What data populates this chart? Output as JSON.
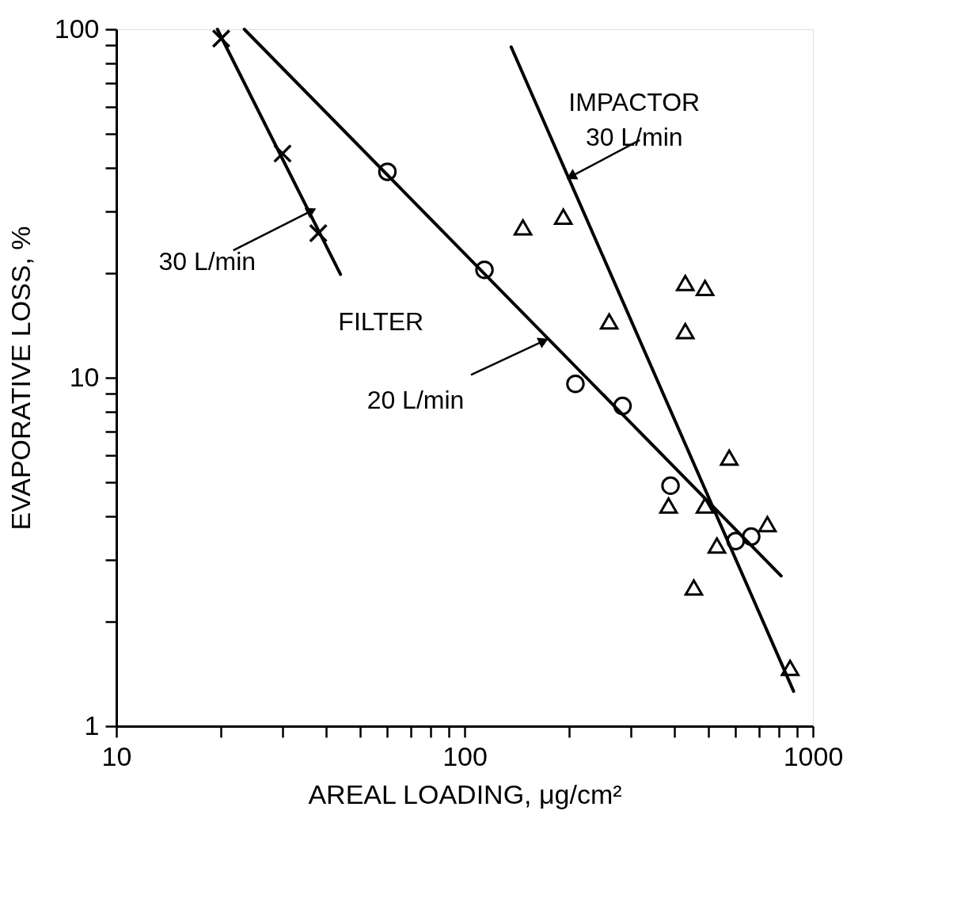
{
  "chart_data": {
    "type": "scatter",
    "xlabel": "AREAL LOADING, μg/cm²",
    "ylabel": "EVAPORATIVE LOSS, %",
    "log": "xy",
    "grid": false,
    "xlim": [
      10,
      1000
    ],
    "ylim": [
      1,
      100
    ],
    "xticks": [
      10,
      {
        "value": 20,
        "label": null
      },
      {
        "value": 30,
        "label": null
      },
      {
        "value": 40,
        "label": null
      },
      {
        "value": 50,
        "label": null
      },
      {
        "value": 60,
        "label": null
      },
      {
        "value": 70,
        "label": null
      },
      {
        "value": 80,
        "label": null
      },
      {
        "value": 90,
        "label": null
      },
      100,
      {
        "value": 200,
        "label": null
      },
      {
        "value": 300,
        "label": null
      },
      {
        "value": 400,
        "label": null
      },
      {
        "value": 500,
        "label": null
      },
      {
        "value": 600,
        "label": null
      },
      {
        "value": 700,
        "label": null
      },
      {
        "value": 800,
        "label": null
      },
      {
        "value": 900,
        "label": null
      },
      1000
    ],
    "yticks": [
      1,
      {
        "value": 2,
        "label": null
      },
      {
        "value": 3,
        "label": null
      },
      {
        "value": 4,
        "label": null
      },
      {
        "value": 5,
        "label": null
      },
      {
        "value": 6,
        "label": null
      },
      {
        "value": 7,
        "label": null
      },
      {
        "value": 8,
        "label": null
      },
      {
        "value": 9,
        "label": null
      },
      10,
      {
        "value": 20,
        "label": null
      },
      {
        "value": 30,
        "label": null
      },
      {
        "value": 40,
        "label": null
      },
      {
        "value": 50,
        "label": null
      },
      {
        "value": 60,
        "label": null
      },
      {
        "value": 70,
        "label": null
      },
      {
        "value": 80,
        "label": null
      },
      {
        "value": 90,
        "label": null
      },
      100
    ],
    "series": [
      {
        "marker": "cross",
        "color": "#000000",
        "x": [
          20,
          30,
          38
        ],
        "values": [
          94,
          44,
          26
        ]
      },
      {
        "type": "line",
        "marker": "none",
        "color": "#000000",
        "x": [
          19.5,
          44
        ],
        "values": [
          100,
          19.8
        ]
      },
      {
        "marker": "circle",
        "color": "#000000",
        "x": [
          60,
          114,
          208,
          284,
          390,
          600,
          665
        ],
        "values": [
          39,
          20.4,
          9.6,
          8.3,
          4.9,
          3.4,
          3.5
        ]
      },
      {
        "type": "line",
        "marker": "none",
        "color": "#000000",
        "x": [
          23.3,
          810
        ],
        "values": [
          100,
          2.7
        ]
      },
      {
        "marker": "triangle",
        "color": "#000000",
        "x": [
          147,
          192,
          260,
          430,
          490,
          430,
          575,
          385,
          490,
          530,
          740,
          455,
          860
        ],
        "values": [
          27,
          29,
          14.5,
          18.7,
          18.1,
          13.6,
          5.9,
          4.3,
          4.3,
          3.3,
          3.8,
          2.5,
          1.47
        ]
      },
      {
        "type": "line",
        "marker": "none",
        "color": "#000000",
        "x": [
          136,
          880
        ],
        "values": [
          89,
          1.26
        ]
      }
    ],
    "annotations": [
      {
        "text": "30 L/min",
        "x": 36,
        "y": 30
      },
      "FILTER",
      {
        "text": "20 L/min",
        "x": 167,
        "y": 12.7
      },
      {
        "text": "IMPACTOR\n30 L/min",
        "x": 204,
        "y": 38
      }
    ]
  }
}
